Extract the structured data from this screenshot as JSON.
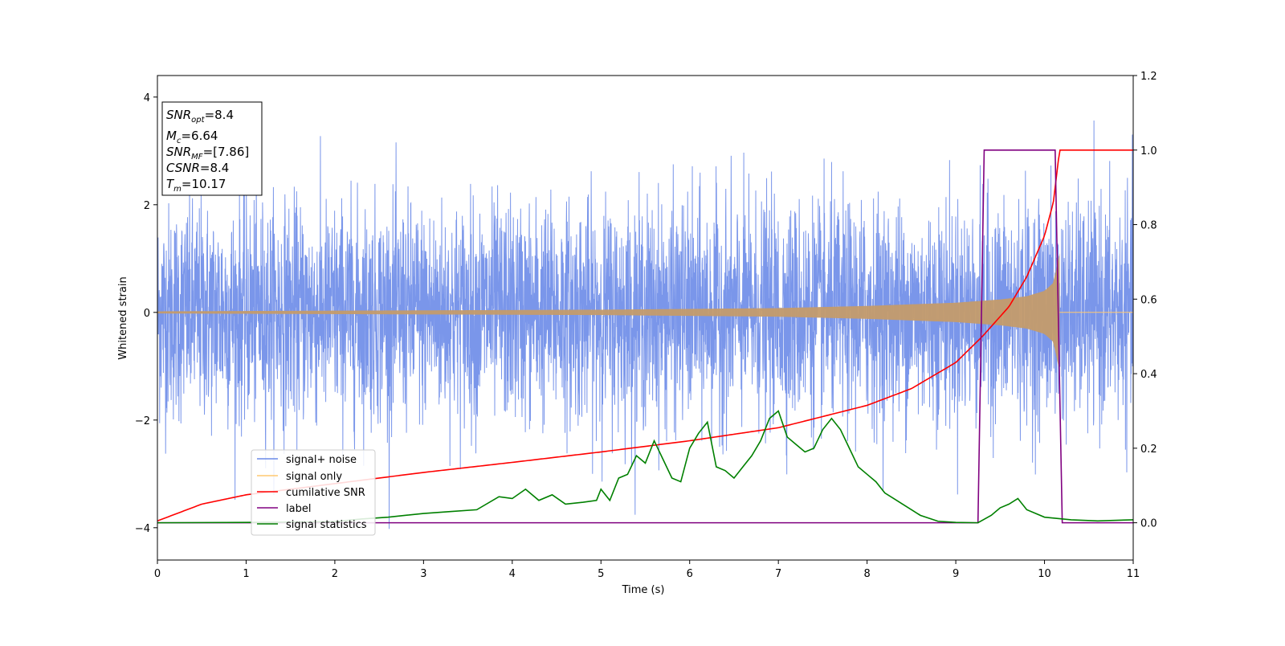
{
  "chart_data": {
    "type": "line",
    "xlabel": "Time (s)",
    "ylabel": "Whitened strain",
    "xlim": [
      0,
      11
    ],
    "ylim": [
      -4.6,
      4.4
    ],
    "y2lim": [
      -0.1,
      1.2
    ],
    "grid": false,
    "legend_placement": "lower-left",
    "x_ticks": [
      "0",
      "1",
      "2",
      "3",
      "4",
      "5",
      "6",
      "7",
      "8",
      "9",
      "10",
      "11"
    ],
    "y_ticks": [
      "4",
      "2",
      "0",
      "−2",
      "−4"
    ],
    "y2_ticks": [
      "1.2",
      "1.0",
      "0.8",
      "0.6",
      "0.4",
      "0.2",
      "0.0"
    ],
    "info_box": {
      "snr_opt": {
        "label": "SNR",
        "sub": "opt",
        "value": "=8.4"
      },
      "mc": {
        "label": "M",
        "sub": "c",
        "value": "=6.64"
      },
      "snr_mf": {
        "label": "SNR",
        "sub": "MF",
        "value": "=[7.86]"
      },
      "csnr": {
        "label": "CSNR",
        "value": "=8.4"
      },
      "tm": {
        "label": "T",
        "sub": "m",
        "value": "=10.17"
      }
    },
    "series": [
      {
        "name": "signal+ noise",
        "color": "#6b8be8",
        "axis": "left",
        "noise_sigma": 1.0,
        "min": -4.15,
        "max": 4.05
      },
      {
        "name": "signal only",
        "color": "#ffc870",
        "axis": "left",
        "merge_time": 10.17,
        "envelope": {
          "x": [
            0,
            5,
            7,
            8,
            9,
            9.5,
            9.8,
            10,
            10.1,
            10.17
          ],
          "y": [
            0.02,
            0.05,
            0.08,
            0.12,
            0.18,
            0.24,
            0.3,
            0.4,
            0.55,
            1.1
          ]
        }
      },
      {
        "name": "cumilative SNR",
        "color": "#ff0000",
        "axis": "right",
        "x": [
          0,
          0.5,
          1,
          2,
          3,
          4,
          5,
          6,
          7,
          8,
          8.5,
          9,
          9.3,
          9.6,
          9.8,
          10,
          10.1,
          10.17,
          11
        ],
        "y": [
          0.005,
          0.05,
          0.075,
          0.105,
          0.135,
          0.162,
          0.19,
          0.22,
          0.255,
          0.315,
          0.36,
          0.43,
          0.5,
          0.58,
          0.66,
          0.77,
          0.86,
          1.0,
          1.0
        ]
      },
      {
        "name": "label",
        "color": "#800080",
        "axis": "right",
        "x": [
          0,
          9.25,
          9.32,
          10.12,
          10.2,
          11
        ],
        "y": [
          0,
          0,
          1,
          1,
          0,
          0
        ]
      },
      {
        "name": "signal statistics",
        "color": "#008000",
        "axis": "right",
        "x": [
          0,
          1,
          2,
          2.3,
          2.6,
          2.8,
          3.0,
          3.3,
          3.6,
          3.85,
          4.0,
          4.15,
          4.3,
          4.45,
          4.6,
          4.8,
          4.95,
          5.0,
          5.1,
          5.2,
          5.3,
          5.4,
          5.5,
          5.6,
          5.7,
          5.8,
          5.9,
          6.0,
          6.1,
          6.2,
          6.3,
          6.4,
          6.5,
          6.6,
          6.7,
          6.8,
          6.9,
          7.0,
          7.1,
          7.2,
          7.3,
          7.4,
          7.5,
          7.6,
          7.7,
          7.8,
          7.9,
          8.0,
          8.1,
          8.2,
          8.3,
          8.4,
          8.6,
          8.8,
          9.0,
          9.25,
          9.4,
          9.5,
          9.6,
          9.7,
          9.8,
          10.0,
          10.3,
          10.6,
          11
        ],
        "y": [
          0.0,
          0.001,
          0.003,
          0.01,
          0.015,
          0.02,
          0.025,
          0.03,
          0.035,
          0.07,
          0.065,
          0.09,
          0.06,
          0.075,
          0.05,
          0.055,
          0.06,
          0.09,
          0.06,
          0.12,
          0.13,
          0.18,
          0.16,
          0.22,
          0.17,
          0.12,
          0.11,
          0.2,
          0.24,
          0.27,
          0.15,
          0.14,
          0.12,
          0.15,
          0.18,
          0.22,
          0.28,
          0.3,
          0.23,
          0.21,
          0.19,
          0.2,
          0.25,
          0.28,
          0.25,
          0.2,
          0.15,
          0.13,
          0.11,
          0.08,
          0.065,
          0.05,
          0.02,
          0.004,
          0.001,
          0.0,
          0.02,
          0.04,
          0.05,
          0.065,
          0.035,
          0.015,
          0.008,
          0.005,
          0.008
        ]
      }
    ]
  }
}
